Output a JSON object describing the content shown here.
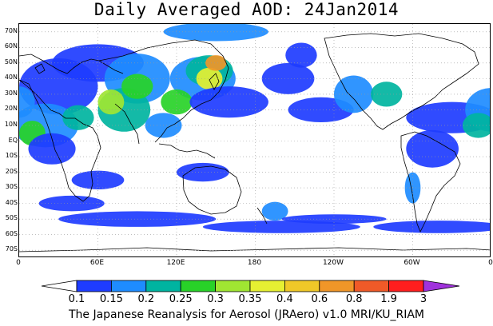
{
  "title": "Daily Averaged AOD: 24Jan2014",
  "credit": "The Japanese Reanalysis for Aerosol (JRAero) v1.0 MRI/KU_RIAM",
  "map": {
    "projection": "equirectangular",
    "lon_range": [
      0,
      360
    ],
    "lat_range": [
      -75,
      75
    ],
    "gridlines": "dotted",
    "lat_labels": [
      "70N",
      "60N",
      "50N",
      "40N",
      "30N",
      "20N",
      "10N",
      "EQ",
      "10S",
      "20S",
      "30S",
      "40S",
      "50S",
      "60S",
      "70S"
    ],
    "lon_labels": [
      "0",
      "60E",
      "120E",
      "180",
      "120W",
      "60W",
      "0"
    ]
  },
  "colorbar": {
    "labels": [
      "0.1",
      "0.15",
      "0.2",
      "0.25",
      "0.3",
      "0.35",
      "0.4",
      "0.6",
      "0.8",
      "1.9",
      "3"
    ],
    "colors": [
      "#ffffff",
      "#1e3cff",
      "#1e8cff",
      "#00b4a0",
      "#28d228",
      "#a0e632",
      "#e6f032",
      "#f0c828",
      "#f09628",
      "#f05a28",
      "#ff1e1e",
      "#a032dc"
    ]
  }
}
